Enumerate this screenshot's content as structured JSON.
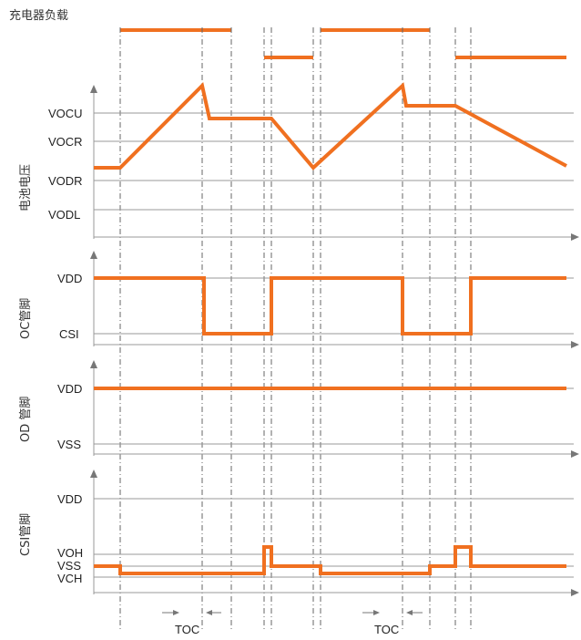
{
  "title": "充电器负载",
  "panels": [
    {
      "name": "battery-voltage",
      "ylabel": "电池电压",
      "levels": [
        "VOCU",
        "VOCR",
        "VODR",
        "VODL"
      ]
    },
    {
      "name": "oc-pin",
      "ylabel": "OC管脚",
      "levels": [
        "VDD",
        "CSI"
      ]
    },
    {
      "name": "od-pin",
      "ylabel": "OD 管脚",
      "levels": [
        "VDD",
        "VSS"
      ]
    },
    {
      "name": "csi-pin",
      "ylabel": "CSI管脚",
      "levels": [
        "VDD",
        "VOH",
        "VSS",
        "VCH"
      ]
    }
  ],
  "toc_labels": [
    "TOC",
    "TOC"
  ],
  "colors": {
    "signal": "#f07020",
    "grid": "#999999"
  }
}
